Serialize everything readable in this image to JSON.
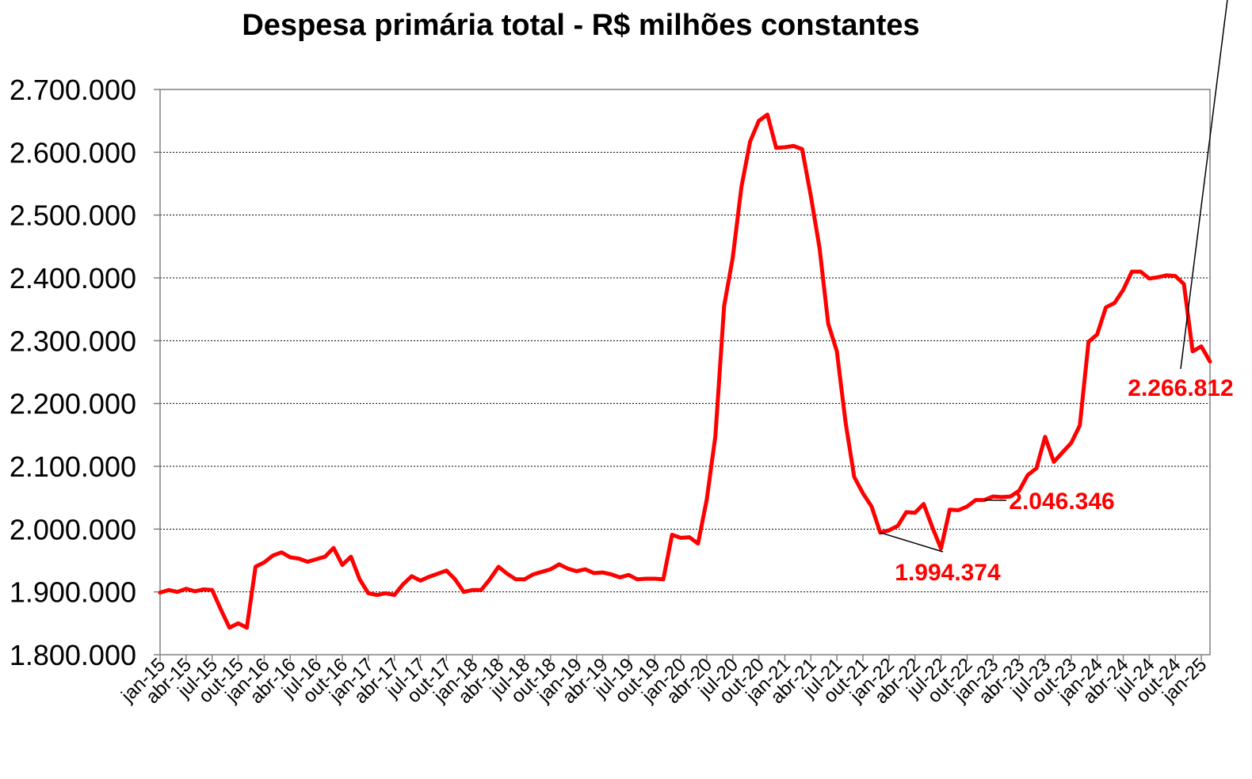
{
  "chart_data": {
    "type": "line",
    "title": "Despesa primária total - R$ milhões constantes",
    "xlabel": "",
    "ylabel": "",
    "ylim": [
      1800000,
      2700000
    ],
    "yticks": [
      "2.700.000",
      "2.600.000",
      "2.500.000",
      "2.400.000",
      "2.300.000",
      "2.200.000",
      "2.100.000",
      "2.000.000",
      "1.900.000",
      "1.800.000"
    ],
    "grid": true,
    "line_color": "#ff0000",
    "tick_labels": [
      "jan-15",
      "abr-15",
      "jul-15",
      "out-15",
      "jan-16",
      "abr-16",
      "jul-16",
      "out-16",
      "jan-17",
      "abr-17",
      "jul-17",
      "out-17",
      "jan-18",
      "abr-18",
      "jul-18",
      "out-18",
      "jan-19",
      "abr-19",
      "jul-19",
      "out-19",
      "jan-20",
      "abr-20",
      "jul-20",
      "out-20",
      "jan-21",
      "abr-21",
      "jul-21",
      "out-21",
      "jan-22",
      "abr-22",
      "jul-22",
      "out-22",
      "jan-23",
      "abr-23",
      "jul-23",
      "out-23",
      "jan-24",
      "abr-24",
      "jul-24",
      "out-24",
      "jan-25"
    ],
    "series": [
      {
        "name": "Despesa primária total",
        "values": [
          1899000,
          1903000,
          1900000,
          1905000,
          1901000,
          1904000,
          1903000,
          1872000,
          1843000,
          1850000,
          1843000,
          1940000,
          1947000,
          1958000,
          1963000,
          1955000,
          1953000,
          1948000,
          1952000,
          1956000,
          1970000,
          1943000,
          1956000,
          1920000,
          1898000,
          1895000,
          1898000,
          1895000,
          1912000,
          1925000,
          1918000,
          1924000,
          1929000,
          1934000,
          1920000,
          1900000,
          1903000,
          1903000,
          1920000,
          1940000,
          1929000,
          1920000,
          1920000,
          1928000,
          1932000,
          1936000,
          1944000,
          1937000,
          1933000,
          1936000,
          1930000,
          1931000,
          1928000,
          1923000,
          1927000,
          1920000,
          1921000,
          1921000,
          1920000,
          1991000,
          1986000,
          1987000,
          1977000,
          2047000,
          2148000,
          2355000,
          2432000,
          2545000,
          2617000,
          2650000,
          2660000,
          2607000,
          2608000,
          2610000,
          2605000,
          2530000,
          2448000,
          2327000,
          2283000,
          2170000,
          2083000,
          2057000,
          2036000,
          1994374,
          1998000,
          2005000,
          2027000,
          2026000,
          2040000,
          2003000,
          1969000,
          2031000,
          2030000,
          2036000,
          2046346,
          2046346,
          2052000,
          2051000,
          2052000,
          2061000,
          2086000,
          2097000,
          2147000,
          2107000,
          2122000,
          2137000,
          2165000,
          2298000,
          2310000,
          2353000,
          2360000,
          2381000,
          2410000,
          2410000,
          2399000,
          2401000,
          2404000,
          2403000,
          2390000,
          2283000,
          2291000,
          2266812
        ]
      }
    ],
    "annotations": [
      {
        "label": "1.994.374",
        "color": "#ff0000"
      },
      {
        "label": "2.046.346",
        "color": "#ff0000"
      },
      {
        "label": "2.266.812",
        "color": "#ff0000"
      }
    ]
  }
}
